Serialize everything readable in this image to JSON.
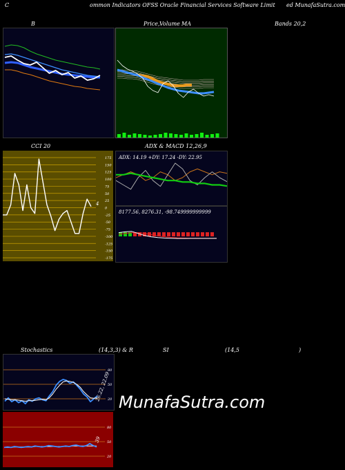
{
  "header": {
    "part1": "C",
    "part2": "ommon  Indicators OFSS Oracle  Financial Services Software  Limit",
    "part3": "ed MunafaSutra.com"
  },
  "titles": {
    "b": "B",
    "price": "Price,",
    "volume": "Volume",
    "ma": "MA",
    "bands": "Bands 20,2",
    "cci": "CCI 20",
    "adx": "ADX  & MACD 12,26,9",
    "stoch": "Stochastics",
    "stoch_params": "(14,3,3) & R",
    "si": "SI",
    "rsi_params": "(14,5",
    "rsi_close": ")"
  },
  "watermark": "MunafaSutra.com",
  "colors": {
    "panel_dark_blue": "#05051e",
    "panel_green": "#002a00",
    "panel_olive": "#5a4d00",
    "panel_red": "#8b0000",
    "bollinger_upper": "#22bb22",
    "bollinger_lower": "#e07a10",
    "price_line": "#ffffff",
    "ma_blue": "#3d8fff",
    "adx_green": "#11cc11",
    "adx_orange": "#c8731a"
  },
  "chart_data": [
    {
      "type": "line",
      "panel": "bollinger",
      "series": [
        {
          "values": [
            76,
            74,
            75,
            78,
            83,
            87,
            90,
            93,
            96,
            98,
            100,
            102,
            104,
            106,
            107,
            109
          ]
        },
        {
          "values": [
            100,
            99,
            100,
            103,
            106,
            108,
            110,
            112,
            114,
            116,
            117,
            118,
            119,
            120,
            121,
            121
          ]
        },
        {
          "values": [
            110,
            110,
            112,
            115,
            117,
            120,
            123,
            126,
            128,
            130,
            132,
            134,
            135,
            137,
            138,
            139
          ]
        },
        {
          "values": [
            92,
            90,
            96,
            101,
            103,
            99,
            107,
            115,
            111,
            117,
            114,
            122,
            119,
            125,
            123,
            118
          ]
        },
        {
          "values": [
            88,
            87,
            89,
            92,
            95,
            98,
            101,
            104,
            107,
            110,
            112,
            114,
            116,
            118,
            119,
            120
          ]
        }
      ]
    },
    {
      "type": "line",
      "panel": "price_volume_ma",
      "series": [
        {
          "values": [
            86,
            94,
            99,
            102,
            106,
            112,
            124,
            130,
            133,
            120,
            116,
            123,
            134,
            140,
            132,
            128,
            134,
            138,
            136,
            138
          ]
        },
        {
          "values": [
            100,
            102,
            104,
            106,
            108,
            111,
            114,
            117,
            120,
            123,
            126,
            128,
            130,
            131,
            132,
            133,
            134,
            134,
            133,
            132
          ]
        },
        {
          "values": [
            106,
            106,
            107,
            107,
            108,
            110,
            112,
            114,
            116,
            117,
            118,
            119,
            120,
            121,
            121,
            121,
            121,
            120,
            120,
            120
          ]
        }
      ],
      "volume": [
        5,
        7,
        4,
        6,
        5,
        4,
        3,
        4,
        5,
        7,
        6,
        5,
        4,
        6,
        4,
        5,
        7,
        4,
        5,
        6
      ]
    },
    {
      "type": "line",
      "panel": "cci",
      "tick_labels": [
        "175",
        "150",
        "125",
        "100",
        "75",
        "50",
        "25",
        "0",
        "-25",
        "-50",
        "-75",
        "-100",
        "-125",
        "-150",
        "-175"
      ],
      "ylim": [
        -175,
        175
      ],
      "value_label": "4",
      "series": [
        {
          "values": [
            -25,
            -25,
            10,
            120,
            80,
            -10,
            80,
            0,
            -20,
            170,
            90,
            10,
            -30,
            -80,
            -40,
            -20,
            -10,
            -50,
            -90,
            -90,
            -20,
            30,
            4
          ]
        }
      ]
    },
    {
      "type": "line",
      "panel": "adx",
      "readout": "ADX: 14.19 +DY: 17.24 -DY: 22.95",
      "series": [
        {
          "values": [
            22,
            22,
            23,
            22,
            21,
            20,
            19,
            18,
            18,
            17,
            17,
            16,
            16,
            15,
            15,
            14.19
          ]
        },
        {
          "values": [
            18,
            15,
            12,
            20,
            25,
            18,
            14,
            22,
            30,
            26,
            18,
            15,
            20,
            24,
            20,
            17.24
          ]
        },
        {
          "values": [
            20,
            22,
            24,
            22,
            18,
            20,
            24,
            22,
            18,
            20,
            24,
            26,
            24,
            22,
            24,
            22.95
          ]
        }
      ]
    },
    {
      "type": "line",
      "panel": "macd",
      "readout": "8177.56,  8276.31,  -98.749999999999",
      "series": [
        {
          "values": [
            40,
            60,
            70,
            20,
            -30,
            -60,
            -80,
            -90,
            -95,
            -100,
            -100,
            -99,
            -99,
            -99,
            -98,
            -98
          ]
        },
        {
          "values": [
            0,
            20,
            40,
            40,
            20,
            -10,
            -40,
            -60,
            -75,
            -85,
            -90,
            -95,
            -97,
            -98,
            -98,
            -99
          ]
        }
      ],
      "histogram": [
        1,
        1,
        1,
        -1,
        -1,
        -1,
        -1,
        -1,
        -1,
        -1,
        -1,
        -1,
        -1,
        -1,
        -1,
        -1,
        -1,
        -1,
        -1,
        -1
      ]
    },
    {
      "type": "line",
      "panel": "stochastics",
      "tick_labels": [
        "80",
        "50",
        "20"
      ],
      "ylim": [
        0,
        100
      ],
      "value_label": "26.22, 22.09",
      "series": [
        {
          "values": [
            15,
            22,
            14,
            18,
            12,
            16,
            10,
            18,
            15,
            20,
            22,
            18,
            16,
            26,
            35,
            48,
            56,
            60,
            58,
            52,
            55,
            48,
            40,
            30,
            24,
            14,
            20,
            26
          ]
        },
        {
          "values": [
            20,
            19,
            18,
            18,
            17,
            16,
            15,
            16,
            16,
            17,
            18,
            19,
            18,
            22,
            30,
            40,
            48,
            55,
            57,
            56,
            54,
            50,
            44,
            35,
            28,
            22,
            21,
            22
          ]
        }
      ]
    },
    {
      "type": "line",
      "panel": "rsi",
      "tick_labels": [
        "80",
        "50",
        "20"
      ],
      "ylim": [
        0,
        100
      ],
      "value_label": "39",
      "series": [
        {
          "values": [
            38,
            39,
            38,
            40,
            39,
            38,
            39,
            40,
            39,
            41,
            40,
            39,
            40,
            42,
            41,
            40,
            39,
            40,
            41,
            40,
            42,
            43,
            41,
            40,
            42,
            46,
            42,
            39
          ]
        },
        {
          "values": [
            38,
            38,
            38,
            39,
            39,
            39,
            39,
            39,
            39,
            40,
            40,
            40,
            40,
            40,
            40,
            40,
            40,
            40,
            40,
            40,
            41,
            41,
            41,
            41,
            41,
            41,
            41,
            41
          ]
        }
      ]
    }
  ]
}
